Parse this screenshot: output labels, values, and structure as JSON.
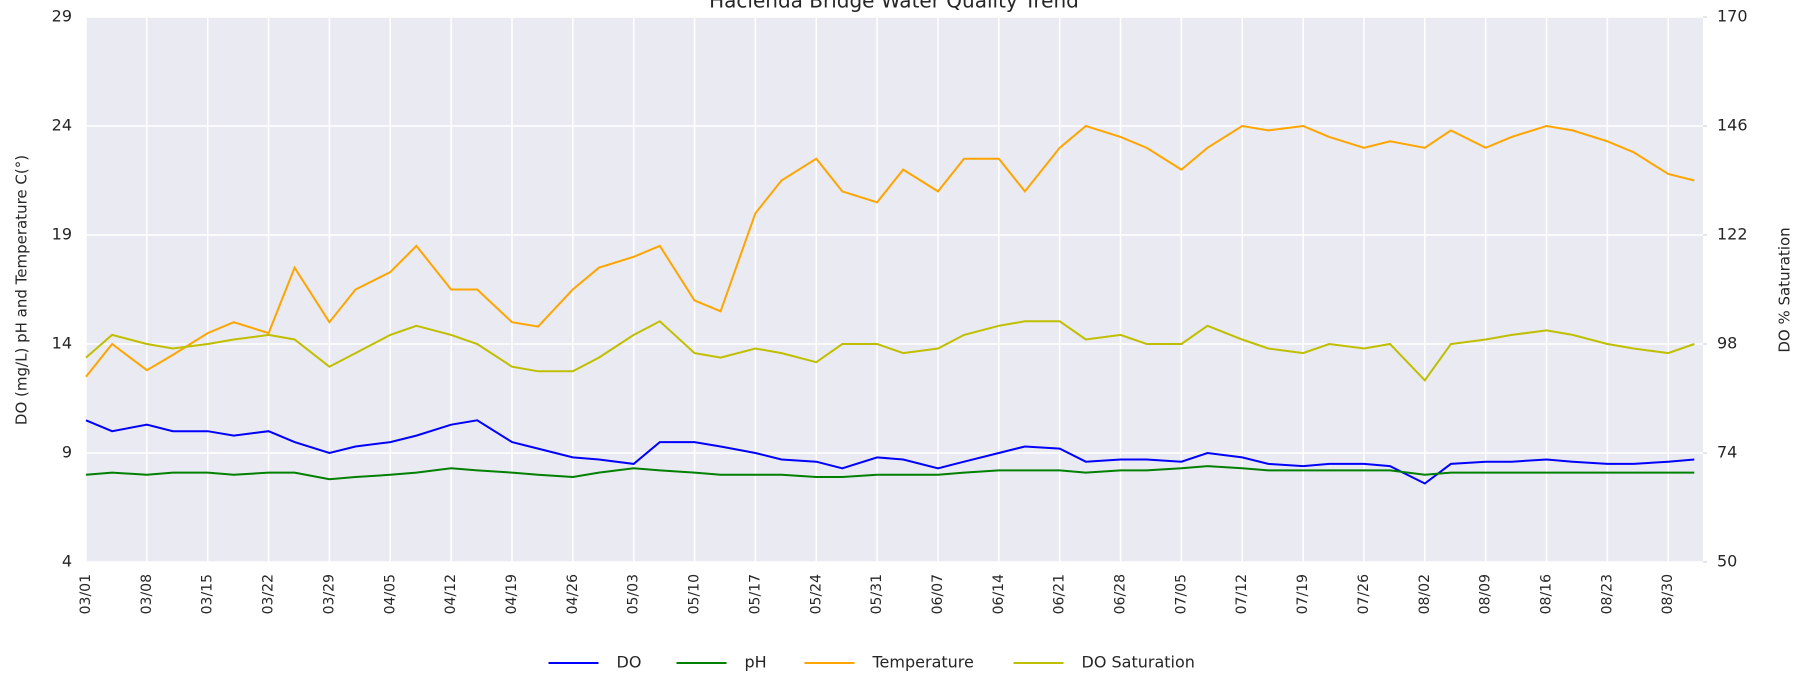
{
  "chart_data": {
    "type": "line",
    "title": "Hacienda Bridge Water Quality Trend",
    "y_label": "DO (mg/L) pH and Temperature C(°)",
    "y2_label": "DO % Saturation",
    "x": [
      "03/01",
      "03/04",
      "03/08",
      "03/11",
      "03/15",
      "03/18",
      "03/22",
      "03/25",
      "03/29",
      "04/01",
      "04/05",
      "04/08",
      "04/12",
      "04/15",
      "04/19",
      "04/22",
      "04/26",
      "04/29",
      "05/03",
      "05/06",
      "05/10",
      "05/13",
      "05/17",
      "05/20",
      "05/24",
      "05/27",
      "05/31",
      "06/03",
      "06/07",
      "06/10",
      "06/14",
      "06/17",
      "06/21",
      "06/24",
      "06/28",
      "07/01",
      "07/05",
      "07/08",
      "07/12",
      "07/15",
      "07/19",
      "07/22",
      "07/26",
      "07/29",
      "08/02",
      "08/05",
      "08/09",
      "08/12",
      "08/16",
      "08/19",
      "08/23",
      "08/26",
      "08/30",
      "09/02"
    ],
    "xlim": [
      "03/01",
      "09/03"
    ],
    "xticks": [
      "03/01",
      "03/08",
      "03/15",
      "03/22",
      "03/29",
      "04/05",
      "04/12",
      "04/19",
      "04/26",
      "05/03",
      "05/10",
      "05/17",
      "05/24",
      "05/31",
      "06/07",
      "06/14",
      "06/21",
      "06/28",
      "07/05",
      "07/12",
      "07/19",
      "07/26",
      "08/02",
      "08/09",
      "08/16",
      "08/23",
      "08/30"
    ],
    "ylim": [
      4,
      29
    ],
    "yticks": [
      4,
      9,
      14,
      19,
      24,
      29
    ],
    "y2lim": [
      50,
      170
    ],
    "y2ticks": [
      50,
      74,
      98,
      122,
      146,
      170
    ],
    "grid": true,
    "legend": "bottom",
    "series": [
      {
        "name": "DO",
        "color": "#0000ff",
        "values": [
          10.5,
          10,
          10.3,
          10,
          10,
          9.8,
          10,
          9.5,
          9,
          9.3,
          9.5,
          9.8,
          10.3,
          10.5,
          9.5,
          9.2,
          8.8,
          8.7,
          8.5,
          9.5,
          9.5,
          9.3,
          9,
          8.7,
          8.6,
          8.3,
          8.8,
          8.7,
          8.3,
          8.6,
          9,
          9.3,
          9.2,
          8.6,
          8.7,
          8.7,
          8.6,
          9,
          8.8,
          8.5,
          8.4,
          8.5,
          8.5,
          8.4,
          7.6,
          8.5,
          8.6,
          8.6,
          8.7,
          8.6,
          8.5,
          8.5,
          8.6,
          8.7
        ]
      },
      {
        "name": "pH",
        "color": "#008000",
        "values": [
          8,
          8.1,
          8,
          8.1,
          8.1,
          8,
          8.1,
          8.1,
          7.8,
          7.9,
          8,
          8.1,
          8.3,
          8.2,
          8.1,
          8,
          7.9,
          8.1,
          8.3,
          8.2,
          8.1,
          8,
          8,
          8,
          7.9,
          7.9,
          8,
          8,
          8,
          8.1,
          8.2,
          8.2,
          8.2,
          8.1,
          8.2,
          8.2,
          8.3,
          8.4,
          8.3,
          8.2,
          8.2,
          8.2,
          8.2,
          8.2,
          8,
          8.1,
          8.1,
          8.1,
          8.1,
          8.1,
          8.1,
          8.1,
          8.1,
          8.1
        ]
      },
      {
        "name": "Temperature",
        "color": "#ffa500",
        "values": [
          12.5,
          14,
          12.8,
          13.5,
          14.5,
          15,
          14.5,
          17.5,
          15,
          16.5,
          17.3,
          18.5,
          16.5,
          16.5,
          15,
          14.8,
          16.5,
          17.5,
          18,
          18.5,
          16,
          15.5,
          20,
          21.5,
          22.5,
          21,
          20.5,
          22,
          21,
          22.5,
          22.5,
          21,
          23,
          24,
          23.5,
          23,
          22,
          23,
          24,
          23.8,
          24,
          23.5,
          23,
          23.3,
          23,
          23.8,
          23,
          23.5,
          24,
          23.8,
          23.3,
          22.8,
          21.8,
          21.5
        ]
      },
      {
        "name": "DO Saturation",
        "color": "#bfbf00",
        "axis": "y2",
        "values": [
          95,
          100,
          98,
          97,
          98,
          99,
          100,
          99,
          93,
          96,
          100,
          102,
          100,
          98,
          93,
          92,
          92,
          95,
          100,
          103,
          96,
          95,
          97,
          96,
          94,
          98,
          98,
          96,
          97,
          100,
          102,
          103,
          103,
          99,
          100,
          98,
          98,
          102,
          99,
          97,
          96,
          98,
          97,
          98,
          90,
          98,
          99,
          100,
          101,
          100,
          98,
          97,
          96,
          98
        ]
      }
    ]
  }
}
